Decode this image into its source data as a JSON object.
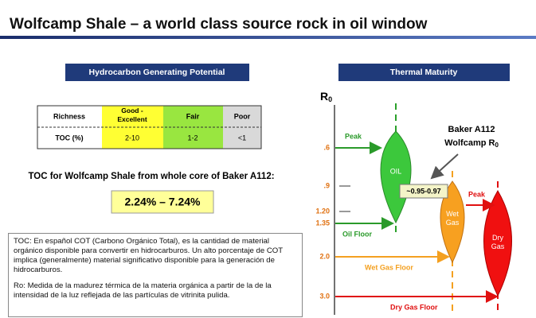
{
  "header": {
    "title": "Wolfcamp Shale – a world class source rock in oil window"
  },
  "left": {
    "heading": "Hydrocarbon Generating Potential",
    "table": {
      "header": [
        "Richness",
        "Good - Excellent",
        "Fair",
        "Poor"
      ],
      "rows": [
        [
          "TOC (%)",
          "2-10",
          "1-2",
          "<1"
        ]
      ]
    },
    "toc_caption": "TOC for Wolfcamp Shale from whole core of Baker A112:",
    "toc_range": "2.24% – 7.24%",
    "notes": [
      "TOC: En español COT (Carbono Orgánico Total), es la cantidad de material orgánico disponible para convertir en hidrocarburos. Un alto porcentaje de COT implica (generalmente) material significativo disponible para la generación de hidrocarburos.",
      "Ro: Medida de la madurez térmica de la materia orgánica a partir de la de la intensidad de la luz reflejada de las partículas de vitrinita pulida."
    ]
  },
  "right": {
    "heading": "Thermal Maturity",
    "axis_label": {
      "main": "R",
      "sub": "0"
    },
    "ticks": [
      ".6",
      ".9",
      "1.20",
      "1.35",
      "2.0",
      "3.0"
    ],
    "zones": [
      "OIL",
      "Wet Gas",
      "Dry Gas"
    ],
    "levels": {
      "oil_peak": "Peak",
      "oil_floor": "Oil Floor",
      "wet_gas_floor": "Wet Gas Floor",
      "dry_gas_floor": "Dry Gas Floor",
      "gas_peak": "Peak"
    },
    "sample": {
      "line1": "Baker A112",
      "line2": "Wolfcamp R",
      "sub": "0",
      "value": "~0.95-0.97"
    }
  }
}
